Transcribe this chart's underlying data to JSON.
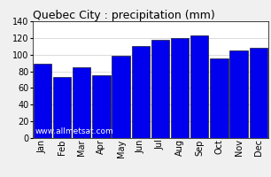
{
  "title": "Quebec City : precipitation (mm)",
  "months": [
    "Jan",
    "Feb",
    "Mar",
    "Apr",
    "May",
    "Jun",
    "Jul",
    "Aug",
    "Sep",
    "Oct",
    "Nov",
    "Dec"
  ],
  "values": [
    89,
    73,
    85,
    75,
    99,
    110,
    118,
    120,
    123,
    95,
    105,
    108
  ],
  "bar_color": "#0000EE",
  "bar_edge_color": "#000000",
  "ylim": [
    0,
    140
  ],
  "yticks": [
    0,
    20,
    40,
    60,
    80,
    100,
    120,
    140
  ],
  "background_color": "#f0f0f0",
  "plot_bg_color": "#ffffff",
  "grid_color": "#cccccc",
  "title_fontsize": 9,
  "tick_fontsize": 7,
  "watermark": "www.allmetsat.com",
  "watermark_color": "#ffffff",
  "watermark_fontsize": 6.5
}
